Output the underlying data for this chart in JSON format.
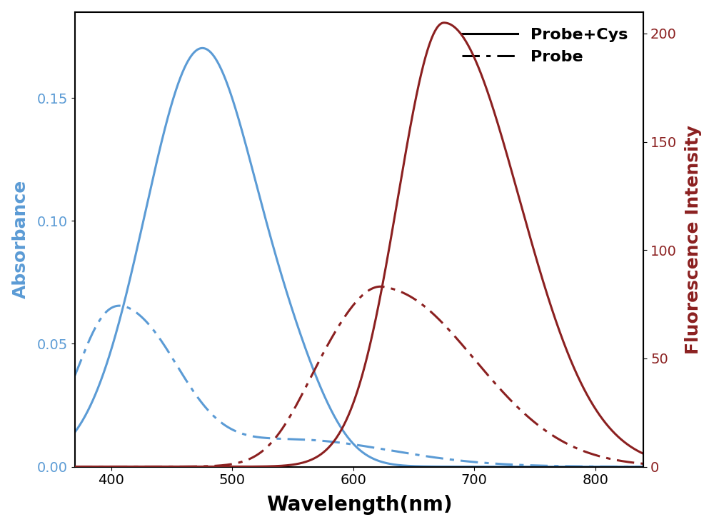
{
  "xlabel": "Wavelength(nm)",
  "ylabel_left": "Absorbance",
  "ylabel_right": "Fluorescence Intensity",
  "xlim": [
    370,
    840
  ],
  "ylim_left": [
    0.0,
    0.185
  ],
  "ylim_right": [
    0,
    210
  ],
  "yticks_left": [
    0.0,
    0.05,
    0.1,
    0.15
  ],
  "yticks_right": [
    0,
    50,
    100,
    150,
    200
  ],
  "xticks": [
    400,
    500,
    600,
    700,
    800
  ],
  "color_blue": "#5B9BD5",
  "color_red": "#8B2020",
  "legend_labels": [
    "Probe+Cys",
    "Probe"
  ],
  "line_width": 2.2,
  "xlabel_fontsize": 20,
  "ylabel_fontsize": 18,
  "tick_fontsize": 14,
  "legend_fontsize": 16
}
